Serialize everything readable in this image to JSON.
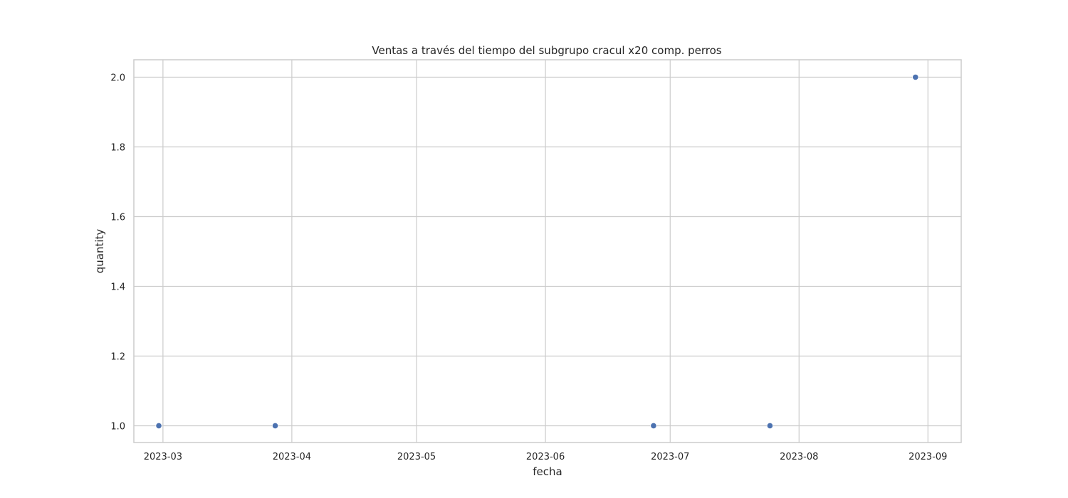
{
  "chart_data": {
    "type": "scatter",
    "title": "Ventas a través del tiempo del subgrupo cracul x20 comp. perros",
    "xlabel": "fecha",
    "ylabel": "quantity",
    "x_ticks": [
      "2023-03-01",
      "2023-04-01",
      "2023-05-01",
      "2023-06-01",
      "2023-07-01",
      "2023-08-01",
      "2023-09-01"
    ],
    "x_tick_labels": [
      "2023-03",
      "2023-04",
      "2023-05",
      "2023-06",
      "2023-07",
      "2023-08",
      "2023-09"
    ],
    "y_ticks": [
      1.0,
      1.2,
      1.4,
      1.6,
      1.8,
      2.0
    ],
    "y_tick_labels": [
      "1.0",
      "1.2",
      "1.4",
      "1.6",
      "1.8",
      "2.0"
    ],
    "xlim": [
      "2023-02-22",
      "2023-09-09"
    ],
    "ylim": [
      0.952,
      2.05
    ],
    "grid": true,
    "point_color": "#4c72b0",
    "points": [
      {
        "x": "2023-02-28",
        "y": 1
      },
      {
        "x": "2023-03-28",
        "y": 1
      },
      {
        "x": "2023-06-27",
        "y": 1
      },
      {
        "x": "2023-07-25",
        "y": 1
      },
      {
        "x": "2023-08-29",
        "y": 2
      }
    ]
  }
}
